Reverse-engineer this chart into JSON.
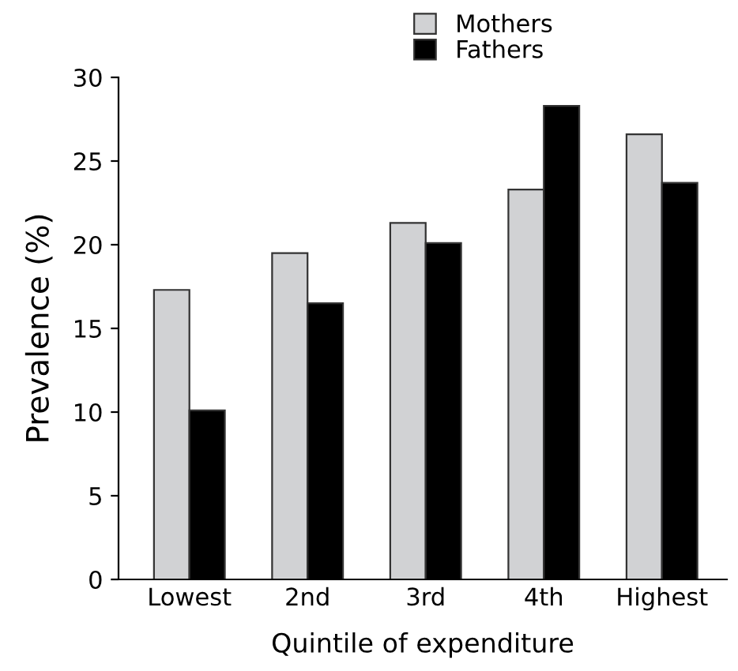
{
  "chart_data": {
    "type": "bar",
    "xlabel": "Quintile of expenditure",
    "ylabel": "Prevalence (%)",
    "categories": [
      "Lowest",
      "2nd",
      "3rd",
      "4th",
      "Highest"
    ],
    "series": [
      {
        "name": "Mothers",
        "color": "#d1d2d4",
        "values": [
          17.3,
          19.5,
          21.3,
          23.3,
          26.6
        ]
      },
      {
        "name": "Fathers",
        "color": "#000000",
        "values": [
          10.1,
          16.5,
          20.1,
          28.3,
          23.7
        ]
      }
    ],
    "ylim": [
      0,
      30
    ],
    "yticks": [
      0,
      5,
      10,
      15,
      20,
      25,
      30
    ],
    "grid": false,
    "legend": "top"
  }
}
